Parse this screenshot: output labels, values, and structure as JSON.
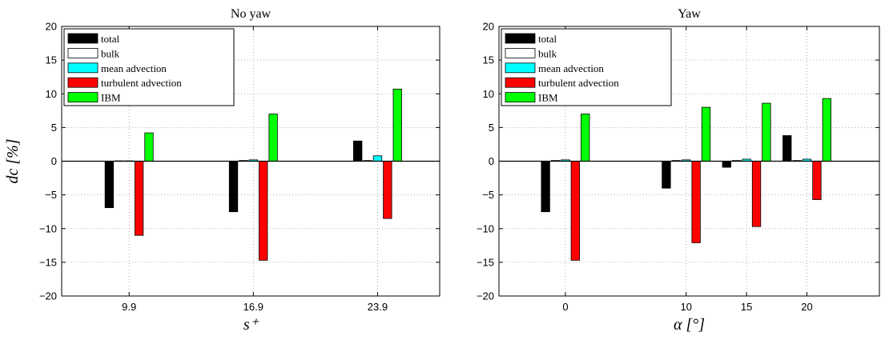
{
  "chart_data": [
    {
      "type": "bar",
      "title": "No yaw",
      "xlabel": "s⁺",
      "ylabel": "dc [%]",
      "ylim": [
        -20,
        20
      ],
      "yticks": [
        -20,
        -15,
        -10,
        -5,
        0,
        5,
        10,
        15,
        20
      ],
      "categories": [
        "9.9",
        "16.9",
        "23.9"
      ],
      "x": [
        9.9,
        16.9,
        23.9
      ],
      "xlim": [
        6.1,
        27.4
      ],
      "grid": true,
      "legend_position": "top-left",
      "series": [
        {
          "name": "total",
          "color": "#000000",
          "values": [
            -6.9,
            -7.5,
            3.0
          ]
        },
        {
          "name": "bulk",
          "color": "#ffffff",
          "values": [
            0.05,
            0.1,
            0.1
          ]
        },
        {
          "name": "mean advection",
          "color": "#00ffff",
          "values": [
            0.05,
            0.2,
            0.8
          ]
        },
        {
          "name": "turbulent advection",
          "color": "#ff0000",
          "values": [
            -11.0,
            -14.7,
            -8.5
          ]
        },
        {
          "name": "IBM",
          "color": "#00ff00",
          "values": [
            4.2,
            7.0,
            10.7
          ]
        }
      ]
    },
    {
      "type": "bar",
      "title": "Yaw",
      "xlabel": "α [°]",
      "ylabel": "",
      "ylim": [
        -20,
        20
      ],
      "yticks": [
        -20,
        -15,
        -10,
        -5,
        0,
        5,
        10,
        15,
        20
      ],
      "categories": [
        "0",
        "10",
        "15",
        "20"
      ],
      "x": [
        0,
        10,
        15,
        20
      ],
      "xlim": [
        -5.5,
        26.0
      ],
      "grid": true,
      "legend_position": "top-left",
      "series": [
        {
          "name": "total",
          "color": "#000000",
          "values": [
            -7.5,
            -4.0,
            -0.9,
            3.8
          ]
        },
        {
          "name": "bulk",
          "color": "#ffffff",
          "values": [
            0.1,
            0.1,
            0.1,
            0.1
          ]
        },
        {
          "name": "mean advection",
          "color": "#00ffff",
          "values": [
            0.2,
            0.2,
            0.3,
            0.3
          ]
        },
        {
          "name": "turbulent advection",
          "color": "#ff0000",
          "values": [
            -14.7,
            -12.1,
            -9.7,
            -5.7
          ]
        },
        {
          "name": "IBM",
          "color": "#00ff00",
          "values": [
            7.0,
            8.0,
            8.6,
            9.3
          ]
        }
      ]
    }
  ]
}
